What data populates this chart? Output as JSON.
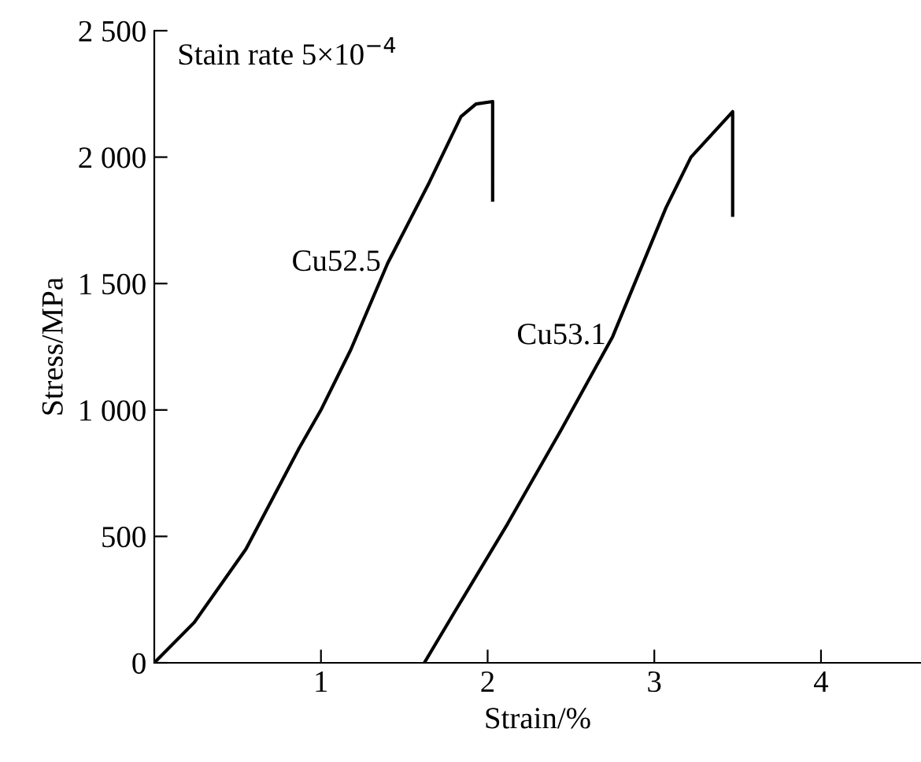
{
  "chart_data": {
    "type": "line",
    "xlabel": "Strain/%",
    "ylabel": "Stress/MPa",
    "annotations": [
      "Stain rate 5×10$^{−4}$"
    ],
    "xlim": [
      0,
      4.6
    ],
    "ylim": [
      0,
      2500
    ],
    "xticks": [
      1,
      2,
      3,
      4
    ],
    "yticks": [
      0,
      500,
      {
        "value": 1000,
        "label": "1 000"
      },
      {
        "value": 1500,
        "label": "1 500"
      },
      {
        "value": 2000,
        "label": "2 000"
      },
      {
        "value": 2500,
        "label": "2 500"
      }
    ],
    "grid": false,
    "marker": "none",
    "line_style": "solid",
    "series": [
      {
        "name": "Cu52.5",
        "color": "#000000",
        "x": [
          0,
          0.24,
          0.55,
          0.87,
          1.0,
          1.18,
          1.4,
          1.65,
          1.84,
          1.93,
          2.03,
          2.03
        ],
        "values": [
          0,
          160,
          450,
          850,
          1000,
          1240,
          1580,
          1900,
          2160,
          2210,
          2220,
          1830
        ]
      },
      {
        "name": "Cu53.1",
        "color": "#000000",
        "x": [
          1.62,
          1.81,
          2.12,
          2.44,
          2.75,
          3.07,
          3.22,
          3.47,
          3.47
        ],
        "values": [
          0,
          210,
          550,
          920,
          1290,
          1800,
          2000,
          2180,
          1770
        ]
      }
    ]
  }
}
